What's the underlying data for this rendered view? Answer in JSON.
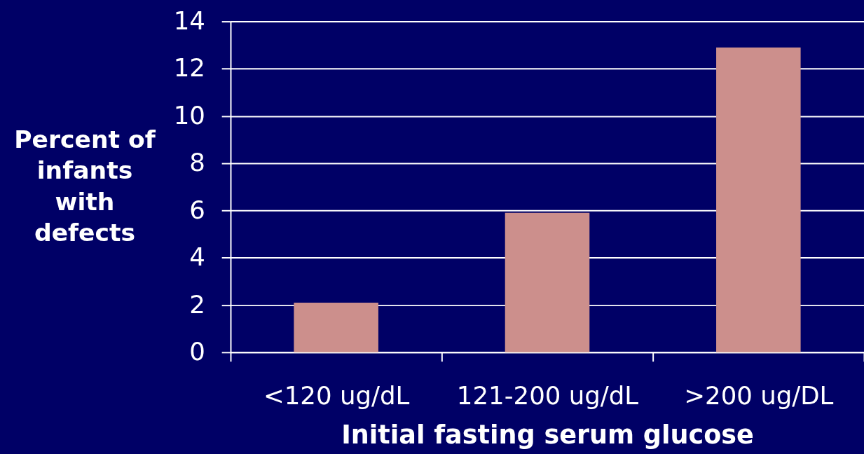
{
  "chart_data": {
    "type": "bar",
    "xlabel": "Initial fasting serum glucose",
    "ylabel": "Percent of infants with defects",
    "categories": [
      "<120 ug/dL",
      "121-200 ug/dL",
      ">200 ug/DL"
    ],
    "values": [
      2.1,
      5.9,
      12.9
    ],
    "color": "#cc8f8c",
    "ylim": [
      0,
      14
    ],
    "yticks": [
      0,
      2,
      4,
      6,
      8,
      10,
      12,
      14
    ],
    "grid": "y"
  }
}
